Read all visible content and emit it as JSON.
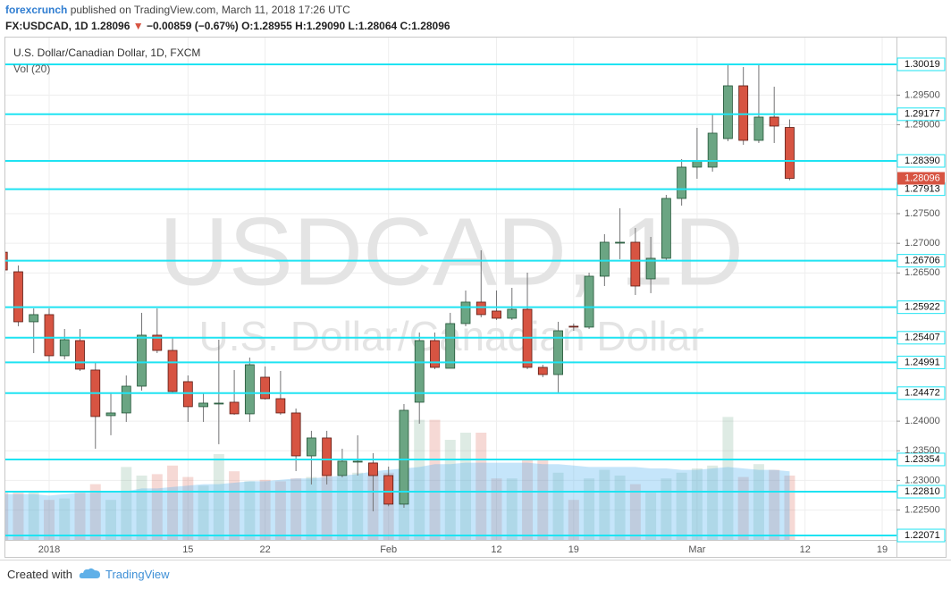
{
  "header": {
    "author": "forexcrunch",
    "published": "published on TradingView.com, March 11, 2018 17:26 UTC"
  },
  "symbol_line": {
    "symbol": "FX:USDCAD, 1D",
    "price": "1.28096",
    "arrow": "▼",
    "change": "−0.00859 (−0.67%)",
    "ohlc": "O:1.28955 H:1.29090 L:1.28064 C:1.28096"
  },
  "footer": {
    "created": "Created with",
    "brand": "TradingView"
  },
  "chart_data": {
    "type": "candlestick",
    "title": "U.S. Dollar/Canadian Dollar, 1D, FXCM",
    "volume_label": "Vol (20)",
    "watermark": [
      "USDCAD, 1D",
      "U.S. Dollar/Canadian Dollar"
    ],
    "categories": [
      null,
      null,
      null,
      "2018",
      null,
      null,
      null,
      null,
      null,
      null,
      null,
      null,
      "15",
      null,
      null,
      null,
      null,
      "22",
      null,
      null,
      null,
      null,
      null,
      null,
      null,
      "Feb",
      null,
      null,
      null,
      null,
      null,
      null,
      "12",
      null,
      null,
      null,
      null,
      "19",
      null,
      null,
      null,
      null,
      null,
      null,
      null,
      "Mar",
      null,
      null,
      null,
      null,
      null,
      null,
      "12",
      null,
      null,
      null,
      null,
      "19"
    ],
    "open": [
      1.2685,
      1.2652,
      1.25676,
      1.25797,
      1.25103,
      1.25359,
      1.24862,
      1.24093,
      1.24138,
      1.2459,
      1.2545,
      1.25193,
      1.24666,
      1.24244,
      1.24289,
      1.24319,
      1.24123,
      1.24741,
      1.24379,
      1.24138,
      1.23414,
      1.23716,
      1.23082,
      1.23309,
      1.23294,
      1.23082,
      1.226,
      1.24319,
      1.25359,
      1.24892,
      1.25646,
      1.26008,
      1.25857,
      1.25736,
      1.25887,
      1.24907,
      1.24786,
      1.25601,
      1.25586,
      1.26445,
      1.27003,
      1.27018,
      1.264,
      1.26747,
      1.27757,
      1.28285,
      1.28285,
      1.28767,
      1.29657,
      1.28737,
      1.29129,
      1.28955,
      null,
      null,
      null,
      null,
      null,
      null
    ],
    "high": [
      1.269,
      1.26626,
      1.25902,
      1.25902,
      1.25555,
      1.25555,
      1.24997,
      1.24485,
      1.24771,
      1.25827,
      1.25902,
      1.25405,
      1.24771,
      1.2447,
      1.25374,
      1.24862,
      1.25073,
      1.24922,
      1.24847,
      1.24213,
      1.23837,
      1.23837,
      1.23535,
      1.23762,
      1.2346,
      1.23233,
      1.24289,
      1.25495,
      1.25495,
      1.25827,
      1.26204,
      1.26882,
      1.26204,
      1.26249,
      1.26505,
      1.24952,
      1.25676,
      1.25646,
      1.26505,
      1.27154,
      1.27591,
      1.27259,
      1.27108,
      1.27817,
      1.28421,
      1.28948,
      1.29175,
      1.30019,
      1.29974,
      1.30019,
      1.29642,
      1.2909,
      null,
      null,
      null,
      null,
      null,
      null
    ],
    "low": [
      1.264,
      1.25601,
      1.25148,
      1.24997,
      1.25043,
      1.24847,
      1.23535,
      1.23762,
      1.23987,
      1.24515,
      1.25148,
      1.24485,
      1.23987,
      1.23987,
      1.23611,
      1.24108,
      1.23987,
      1.24364,
      1.24108,
      1.23158,
      1.22932,
      1.22932,
      1.23052,
      1.23082,
      1.22479,
      1.22565,
      1.22539,
      1.23957,
      1.24877,
      1.24892,
      1.25601,
      1.25752,
      1.25706,
      1.25706,
      1.24877,
      1.24741,
      1.24485,
      1.25525,
      1.25555,
      1.26279,
      1.26732,
      1.26128,
      1.26159,
      1.26701,
      1.27636,
      1.28089,
      1.28209,
      1.28722,
      1.28662,
      1.28692,
      1.28692,
      1.28064,
      null,
      null,
      null,
      null,
      null,
      null
    ],
    "close": [
      1.2655,
      1.25676,
      1.25797,
      1.25103,
      1.25374,
      1.24877,
      1.24078,
      1.24138,
      1.2459,
      1.2545,
      1.25193,
      1.245,
      1.24244,
      1.24304,
      1.24304,
      1.24123,
      1.24952,
      1.24379,
      1.24138,
      1.23414,
      1.23716,
      1.23082,
      1.23324,
      1.23324,
      1.23082,
      1.226,
      1.24183,
      1.25359,
      1.24907,
      1.25646,
      1.26008,
      1.25797,
      1.25736,
      1.25887,
      1.24907,
      1.24786,
      1.25525,
      1.25586,
      1.26445,
      1.27018,
      1.27018,
      1.26279,
      1.26747,
      1.27757,
      1.28285,
      1.2839,
      1.28858,
      1.29657,
      1.28737,
      1.29129,
      1.28978,
      1.28096,
      null,
      null,
      null,
      null,
      null,
      null
    ],
    "volume": [
      33,
      33,
      34,
      28,
      29,
      33,
      39,
      28,
      51,
      45,
      46,
      52,
      44,
      38,
      60,
      48,
      41,
      42,
      41,
      43,
      44,
      56,
      44,
      47,
      47,
      47,
      56,
      84,
      84,
      70,
      75,
      75,
      43,
      43,
      56,
      56,
      47,
      28,
      43,
      49,
      45,
      39,
      33,
      43,
      47,
      50,
      52,
      86,
      44,
      53,
      49,
      45,
      null,
      null,
      null,
      null,
      null,
      null
    ],
    "volume_ma": [
      32,
      32,
      32,
      31,
      32,
      33,
      33,
      34,
      34,
      36,
      36,
      37,
      38,
      39,
      39,
      40,
      41,
      41,
      42,
      43,
      43,
      44,
      45,
      46,
      48,
      49,
      50,
      51,
      53,
      53,
      54,
      54,
      54,
      54,
      54,
      53,
      53,
      52,
      51,
      51,
      51,
      51,
      50,
      50,
      49,
      49,
      50,
      51,
      50,
      49,
      49,
      48,
      null,
      null,
      null,
      null,
      null,
      null
    ],
    "volume_ylim": [
      0,
      100
    ],
    "ylim": [
      1.21996,
      1.30471
    ],
    "yticks": [
      {
        "value": 1.295,
        "label": "1.29500"
      },
      {
        "value": 1.29,
        "label": "1.29000"
      },
      {
        "value": 1.275,
        "label": "1.27500"
      },
      {
        "value": 1.27,
        "label": "1.27000"
      },
      {
        "value": 1.265,
        "label": "1.26500"
      },
      {
        "value": 1.24,
        "label": "1.24000"
      },
      {
        "value": 1.235,
        "label": "1.23500"
      },
      {
        "value": 1.23,
        "label": "1.23000"
      },
      {
        "value": 1.225,
        "label": "1.22500"
      }
    ],
    "levels": [
      1.30019,
      1.29177,
      {
        "value": 1.2839,
        "label": "1.28390"
      },
      1.27913,
      1.26706,
      1.25922,
      1.25407,
      1.24991,
      1.24472,
      1.23354,
      {
        "value": 1.2281,
        "label": "1.22810"
      },
      1.22071
    ],
    "last_price": 1.28096,
    "grid": true,
    "up_color": "#6ba583",
    "down_color": "#d75442",
    "level_color": "#1fe3f2",
    "volume_ma_color": "#5ab4f0"
  }
}
